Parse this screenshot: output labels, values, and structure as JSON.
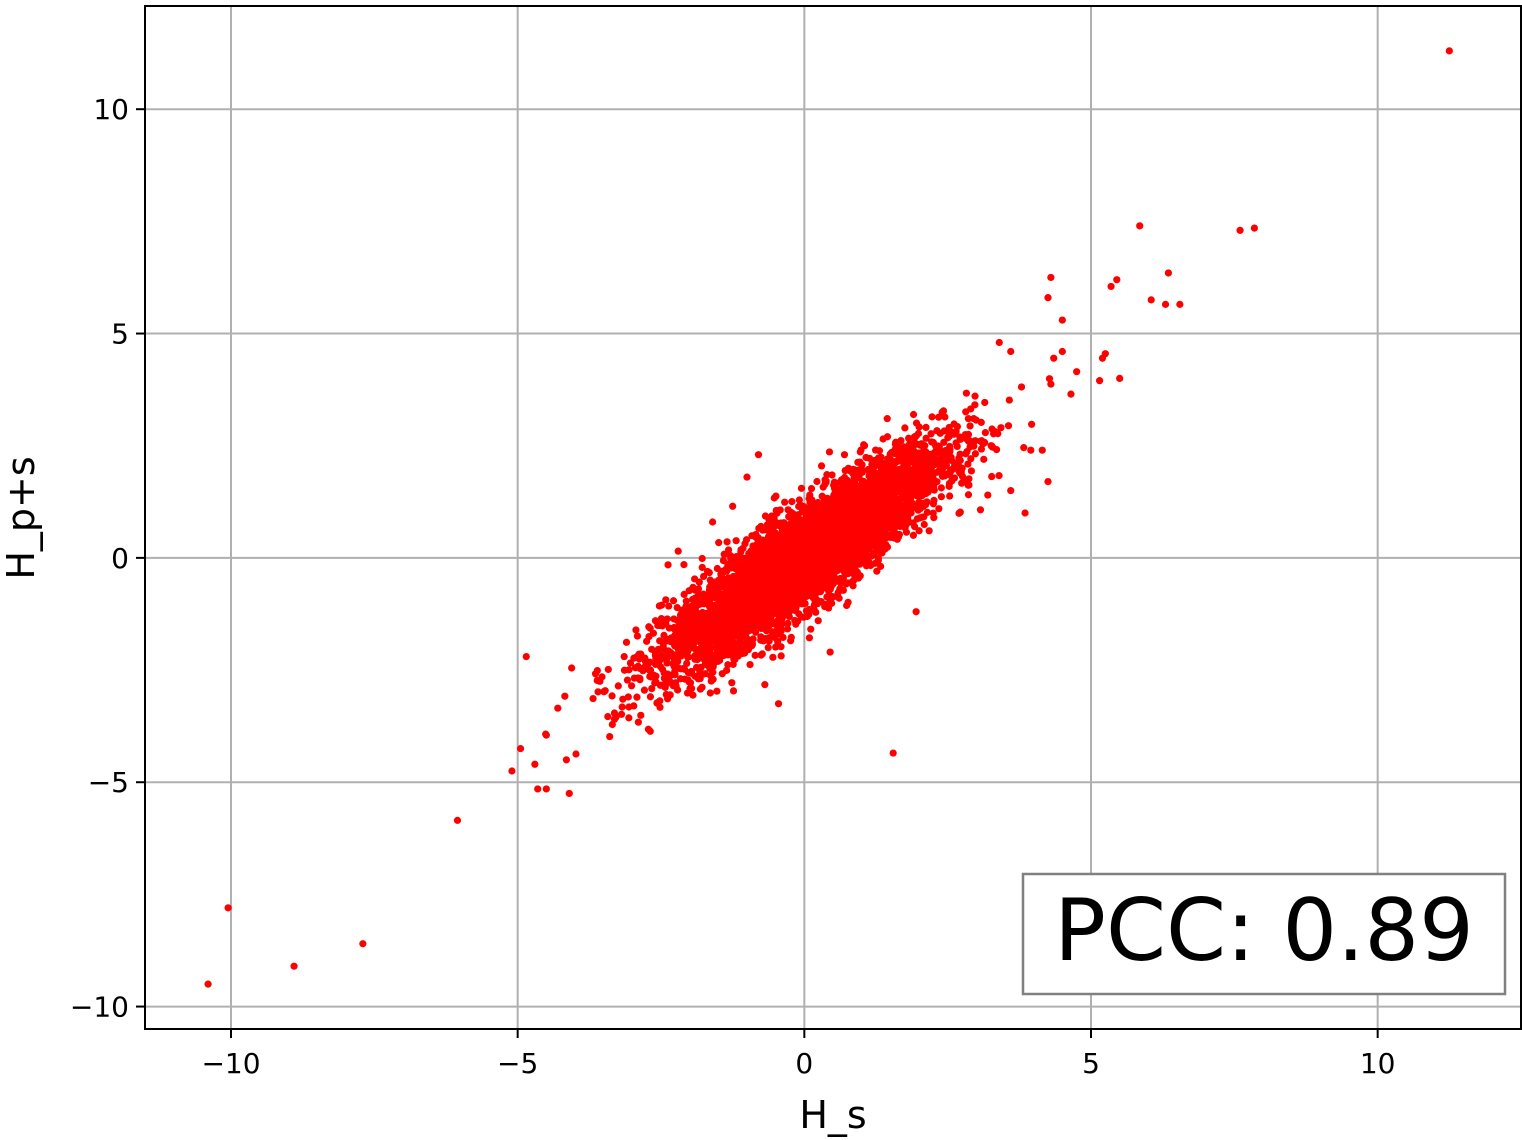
{
  "chart_data": {
    "type": "scatter",
    "xlabel": "H_s",
    "ylabel": "H_p+s",
    "xlim": [
      -11.5,
      12.5
    ],
    "ylim": [
      -10.5,
      12.3
    ],
    "x_ticks": [
      -10,
      -5,
      0,
      5,
      10
    ],
    "y_ticks": [
      -10,
      -5,
      0,
      5,
      10
    ],
    "x_tick_labels": [
      "−10",
      "−5",
      "0",
      "5",
      "10"
    ],
    "y_tick_labels": [
      "−10",
      "−5",
      "0",
      "5",
      "10"
    ],
    "grid": true,
    "series": [
      {
        "color": "#ff0000",
        "points": [
          [
            -10.4,
            -9.5
          ],
          [
            -10.05,
            -7.8
          ],
          [
            -8.9,
            -9.1
          ],
          [
            -7.7,
            -8.6
          ],
          [
            -6.05,
            -5.85
          ],
          [
            -5.1,
            -4.75
          ],
          [
            -4.95,
            -4.25
          ],
          [
            -4.7,
            -4.6
          ],
          [
            -4.65,
            -5.15
          ],
          [
            -4.5,
            -5.15
          ],
          [
            -4.1,
            -5.25
          ],
          [
            -4.15,
            -4.5
          ],
          [
            -4.85,
            -2.2
          ],
          [
            -4.5,
            -3.95
          ],
          [
            -4.3,
            -3.35
          ],
          [
            11.25,
            11.3
          ],
          [
            5.85,
            7.4
          ],
          [
            7.6,
            7.3
          ],
          [
            7.85,
            7.35
          ],
          [
            6.35,
            6.35
          ],
          [
            6.05,
            5.75
          ],
          [
            6.3,
            5.65
          ],
          [
            6.55,
            5.65
          ],
          [
            5.45,
            6.2
          ],
          [
            5.35,
            6.05
          ],
          [
            5.2,
            4.45
          ],
          [
            5.25,
            4.55
          ],
          [
            5.5,
            4.0
          ],
          [
            5.15,
            3.95
          ],
          [
            4.75,
            4.15
          ],
          [
            4.65,
            3.65
          ],
          [
            4.3,
            6.25
          ],
          [
            4.5,
            5.3
          ],
          [
            4.25,
            5.8
          ],
          [
            4.35,
            4.45
          ],
          [
            4.5,
            4.6
          ],
          [
            3.6,
            4.6
          ],
          [
            3.4,
            4.8
          ],
          [
            1.55,
            -4.35
          ],
          [
            1.95,
            -1.2
          ],
          [
            -0.45,
            -3.25
          ],
          [
            0.45,
            -2.1
          ],
          [
            1.45,
            2.7
          ],
          [
            2.5,
            2.4
          ],
          [
            3.2,
            1.4
          ],
          [
            3.6,
            1.5
          ],
          [
            3.85,
            1.0
          ],
          [
            4.15,
            2.4
          ],
          [
            4.25,
            1.7
          ],
          [
            3.95,
            2.4
          ],
          [
            -0.8,
            2.3
          ],
          [
            -1.0,
            1.8
          ],
          [
            -1.25,
            1.15
          ],
          [
            -1.6,
            0.8
          ],
          [
            -2.2,
            0.15
          ],
          [
            -2.1,
            -0.15
          ],
          [
            -0.05,
            1.55
          ],
          [
            0.3,
            2.05
          ],
          [
            0.7,
            2.3
          ],
          [
            1.05,
            2.5
          ]
        ]
      }
    ],
    "annotation": "PCC: 0.89"
  }
}
